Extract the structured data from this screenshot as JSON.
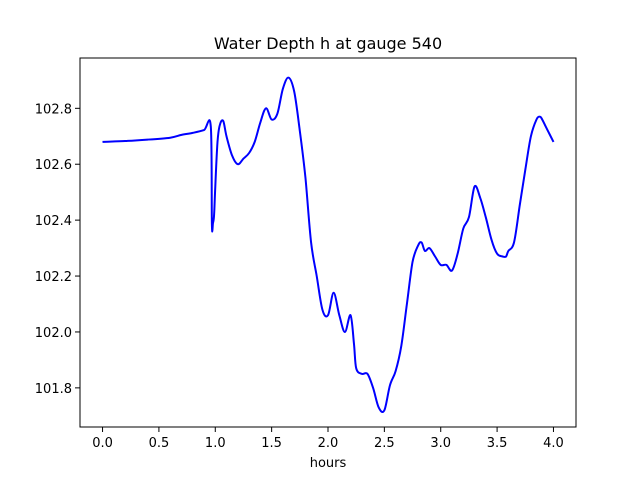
{
  "chart_data": {
    "type": "line",
    "title": "Water Depth h at gauge 540",
    "xlabel": "hours",
    "ylabel": "",
    "xlim": [
      -0.2,
      4.2
    ],
    "ylim": [
      101.66,
      102.98
    ],
    "xticks": [
      0.0,
      0.5,
      1.0,
      1.5,
      2.0,
      2.5,
      3.0,
      3.5,
      4.0
    ],
    "xtick_labels": [
      "0.0",
      "0.5",
      "1.0",
      "1.5",
      "2.0",
      "2.5",
      "3.0",
      "3.5",
      "4.0"
    ],
    "yticks": [
      101.8,
      102.0,
      102.2,
      102.4,
      102.6,
      102.8
    ],
    "ytick_labels": [
      "101.8",
      "102.0",
      "102.2",
      "102.4",
      "102.6",
      "102.8"
    ],
    "grid": false,
    "series": [
      {
        "color": "#0000ff",
        "x": [
          0.0,
          0.2,
          0.4,
          0.6,
          0.7,
          0.8,
          0.9,
          0.96,
          0.97,
          0.98,
          0.99,
          1.0,
          1.02,
          1.04,
          1.07,
          1.1,
          1.15,
          1.2,
          1.25,
          1.3,
          1.35,
          1.4,
          1.45,
          1.5,
          1.55,
          1.6,
          1.65,
          1.7,
          1.75,
          1.8,
          1.85,
          1.9,
          1.95,
          2.0,
          2.05,
          2.1,
          2.15,
          2.2,
          2.23,
          2.25,
          2.3,
          2.35,
          2.4,
          2.45,
          2.5,
          2.55,
          2.6,
          2.65,
          2.7,
          2.75,
          2.8,
          2.83,
          2.86,
          2.9,
          2.95,
          3.0,
          3.05,
          3.1,
          3.15,
          3.2,
          3.25,
          3.3,
          3.35,
          3.4,
          3.45,
          3.5,
          3.55,
          3.58,
          3.6,
          3.65,
          3.7,
          3.75,
          3.8,
          3.85,
          3.88,
          3.9,
          3.95,
          4.0
        ],
        "y": [
          102.68,
          102.683,
          102.688,
          102.695,
          102.705,
          102.712,
          102.722,
          102.735,
          102.385,
          102.39,
          102.42,
          102.52,
          102.68,
          102.74,
          102.755,
          102.7,
          102.63,
          102.6,
          102.62,
          102.64,
          102.68,
          102.75,
          102.8,
          102.76,
          102.78,
          102.87,
          102.91,
          102.86,
          102.72,
          102.55,
          102.32,
          102.2,
          102.08,
          102.06,
          102.14,
          102.06,
          102.0,
          102.06,
          101.96,
          101.87,
          101.85,
          101.85,
          101.8,
          101.73,
          101.72,
          101.81,
          101.86,
          101.95,
          102.1,
          102.25,
          102.31,
          102.32,
          102.29,
          102.3,
          102.27,
          102.24,
          102.24,
          102.22,
          102.28,
          102.37,
          102.41,
          102.52,
          102.48,
          102.41,
          102.33,
          102.28,
          102.27,
          102.27,
          102.29,
          102.32,
          102.45,
          102.58,
          102.7,
          102.76,
          102.77,
          102.76,
          102.72,
          102.68
        ]
      }
    ]
  }
}
